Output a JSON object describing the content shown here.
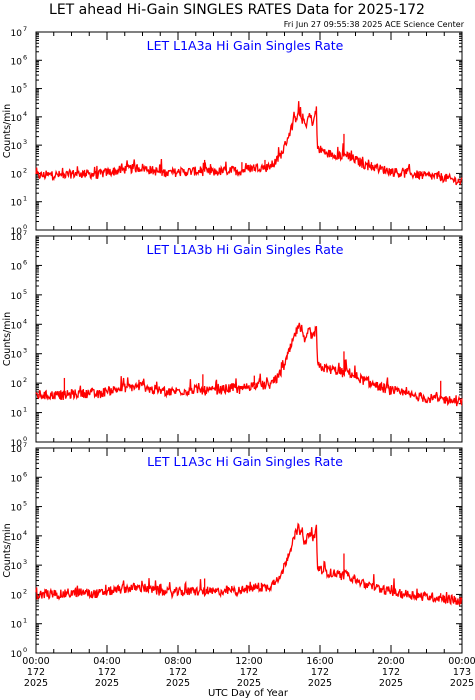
{
  "header": {
    "title": "LET ahead Hi-Gain SINGLES RATES Data for 2025-172",
    "timestamp": "Fri Jun 27 09:55:38 2025 ACE Science Center"
  },
  "colors": {
    "series": "#ff0000",
    "panel_label": "#0000ff",
    "axes": "#000000"
  },
  "chart_data": [
    {
      "type": "line",
      "title": "LET L1A3a Hi Gain Singles Rate",
      "ylabel": "Counts/min",
      "yscale": "log",
      "ylim": [
        1,
        10000000
      ],
      "xlim": [
        0,
        24
      ],
      "y_ticks": [
        {
          "base": "10",
          "exp": "0"
        },
        {
          "base": "10",
          "exp": "1"
        },
        {
          "base": "10",
          "exp": "2"
        },
        {
          "base": "10",
          "exp": "3"
        },
        {
          "base": "10",
          "exp": "4"
        },
        {
          "base": "10",
          "exp": "5"
        },
        {
          "base": "10",
          "exp": "6"
        },
        {
          "base": "10",
          "exp": "7"
        }
      ],
      "series": [
        {
          "x": [
            0,
            0.5,
            1,
            1.5,
            2,
            2.5,
            3,
            3.5,
            4,
            4.5,
            5,
            5.5,
            6,
            6.5,
            7,
            7.5,
            8,
            8.5,
            9,
            9.5,
            10,
            10.5,
            11,
            11.5,
            12,
            12.5,
            13,
            13.3,
            13.6,
            13.9,
            14.2,
            14.5,
            14.8,
            15.0,
            15.2,
            15.4,
            15.6,
            15.8,
            15.85,
            16.0,
            16.5,
            17.0,
            17.3,
            17.5,
            17.8,
            18.0,
            18.5,
            19.0,
            19.5,
            20.0,
            20.5,
            21.0,
            21.5,
            22.0,
            22.5,
            23.0,
            23.5,
            24.0
          ],
          "y": [
            85,
            85,
            90,
            85,
            95,
            100,
            95,
            90,
            110,
            120,
            140,
            150,
            160,
            130,
            110,
            105,
            110,
            115,
            120,
            115,
            110,
            120,
            130,
            120,
            150,
            170,
            160,
            200,
            300,
            600,
            2000,
            6000,
            15000,
            8000,
            5000,
            12000,
            6000,
            18000,
            800,
            700,
            500,
            450,
            400,
            500,
            350,
            300,
            200,
            170,
            140,
            120,
            100,
            100,
            90,
            80,
            80,
            70,
            60,
            50
          ]
        }
      ],
      "spikes": [
        {
          "x": 9.5,
          "y": 300
        },
        {
          "x": 11.6,
          "y": 250
        },
        {
          "x": 12.9,
          "y": 300
        },
        {
          "x": 17.35,
          "y": 2500
        },
        {
          "x": 18.9,
          "y": 250
        },
        {
          "x": 22.7,
          "y": 120
        }
      ]
    },
    {
      "type": "line",
      "title": "LET L1A3b Hi Gain Singles Rate",
      "ylabel": "Counts/min",
      "yscale": "log",
      "ylim": [
        1,
        10000000
      ],
      "xlim": [
        0,
        24
      ],
      "y_ticks": [
        {
          "base": "10",
          "exp": "0"
        },
        {
          "base": "10",
          "exp": "1"
        },
        {
          "base": "10",
          "exp": "2"
        },
        {
          "base": "10",
          "exp": "3"
        },
        {
          "base": "10",
          "exp": "4"
        },
        {
          "base": "10",
          "exp": "5"
        },
        {
          "base": "10",
          "exp": "6"
        },
        {
          "base": "10",
          "exp": "7"
        }
      ],
      "series": [
        {
          "x": [
            0,
            0.5,
            1,
            1.5,
            2,
            2.5,
            3,
            3.5,
            4,
            4.5,
            5,
            5.5,
            6,
            6.5,
            7,
            7.5,
            8,
            8.5,
            9,
            9.5,
            10,
            10.5,
            11,
            11.5,
            12,
            12.5,
            13,
            13.3,
            13.6,
            13.9,
            14.2,
            14.5,
            14.8,
            15.0,
            15.2,
            15.4,
            15.6,
            15.8,
            15.85,
            16.0,
            16.5,
            17.0,
            17.3,
            17.5,
            17.8,
            18.0,
            18.5,
            19.0,
            19.5,
            20.0,
            20.5,
            21.0,
            21.5,
            22.0,
            22.5,
            23.0,
            23.5,
            24.0
          ],
          "y": [
            40,
            38,
            40,
            38,
            42,
            45,
            45,
            40,
            55,
            60,
            70,
            75,
            80,
            60,
            55,
            50,
            55,
            55,
            60,
            55,
            55,
            60,
            70,
            60,
            80,
            90,
            80,
            100,
            150,
            300,
            900,
            3000,
            9000,
            4000,
            2500,
            7000,
            3000,
            9000,
            400,
            350,
            300,
            260,
            220,
            260,
            200,
            170,
            120,
            90,
            70,
            55,
            45,
            40,
            35,
            30,
            30,
            28,
            25,
            22
          ]
        }
      ],
      "spikes": [
        {
          "x": 1.6,
          "y": 150
        },
        {
          "x": 5.8,
          "y": 130
        },
        {
          "x": 9.4,
          "y": 200
        },
        {
          "x": 12.3,
          "y": 180
        },
        {
          "x": 17.35,
          "y": 1200
        },
        {
          "x": 22.8,
          "y": 120
        }
      ]
    },
    {
      "type": "line",
      "title": "LET L1A3c Hi Gain Singles Rate",
      "ylabel": "Counts/min",
      "yscale": "log",
      "ylim": [
        1,
        10000000
      ],
      "xlim": [
        0,
        24
      ],
      "y_ticks": [
        {
          "base": "10",
          "exp": "0"
        },
        {
          "base": "10",
          "exp": "1"
        },
        {
          "base": "10",
          "exp": "2"
        },
        {
          "base": "10",
          "exp": "3"
        },
        {
          "base": "10",
          "exp": "4"
        },
        {
          "base": "10",
          "exp": "5"
        },
        {
          "base": "10",
          "exp": "6"
        },
        {
          "base": "10",
          "exp": "7"
        }
      ],
      "series": [
        {
          "x": [
            0,
            0.5,
            1,
            1.5,
            2,
            2.5,
            3,
            3.5,
            4,
            4.5,
            5,
            5.5,
            6,
            6.5,
            7,
            7.5,
            8,
            8.5,
            9,
            9.5,
            10,
            10.5,
            11,
            11.5,
            12,
            12.5,
            13,
            13.3,
            13.6,
            13.9,
            14.2,
            14.5,
            14.8,
            15.0,
            15.2,
            15.4,
            15.6,
            15.8,
            15.85,
            16.0,
            16.5,
            17.0,
            17.3,
            17.5,
            17.8,
            18.0,
            18.5,
            19.0,
            19.5,
            20.0,
            20.5,
            21.0,
            21.5,
            22.0,
            22.5,
            23.0,
            23.5,
            24.0
          ],
          "y": [
            95,
            100,
            105,
            100,
            110,
            120,
            110,
            105,
            125,
            140,
            160,
            170,
            170,
            145,
            125,
            115,
            120,
            125,
            130,
            125,
            120,
            130,
            140,
            130,
            160,
            180,
            170,
            220,
            330,
            650,
            2200,
            7000,
            20000,
            9000,
            5500,
            14000,
            7000,
            19000,
            900,
            750,
            550,
            480,
            430,
            520,
            380,
            320,
            220,
            180,
            150,
            125,
            105,
            100,
            90,
            85,
            80,
            75,
            65,
            55
          ]
        }
      ],
      "spikes": [
        {
          "x": 9.5,
          "y": 350
        },
        {
          "x": 12.7,
          "y": 250
        },
        {
          "x": 17.35,
          "y": 2500
        },
        {
          "x": 22.8,
          "y": 110
        }
      ]
    }
  ],
  "x_axis": {
    "label": "UTC Day of Year",
    "ticks": [
      {
        "time": "00:00",
        "day": "172",
        "year": "2025"
      },
      {
        "time": "04:00",
        "day": "172",
        "year": "2025"
      },
      {
        "time": "08:00",
        "day": "172",
        "year": "2025"
      },
      {
        "time": "12:00",
        "day": "172",
        "year": "2025"
      },
      {
        "time": "16:00",
        "day": "172",
        "year": "2025"
      },
      {
        "time": "20:00",
        "day": "172",
        "year": "2025"
      },
      {
        "time": "00:00",
        "day": "173",
        "year": "2025"
      }
    ]
  }
}
